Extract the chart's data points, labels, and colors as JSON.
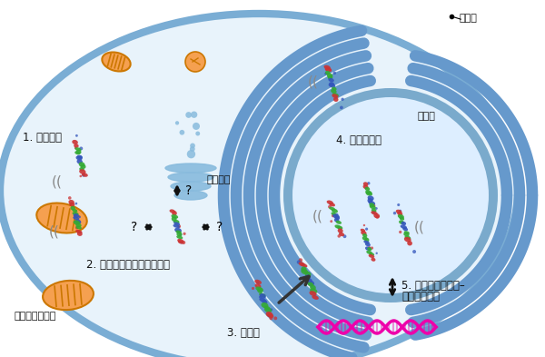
{
  "bg_color": "#ffffff",
  "cell_border_color": "#7aadd4",
  "cell_fill_color": "#e8f3fb",
  "cell_thick": 12,
  "nucleus_border_color": "#6699cc",
  "nucleus_fill_color": "#ddeeff",
  "nucleus_dark_color": "#7aaacc",
  "er_color": "#6699cc",
  "mito_fill": "#f5a050",
  "mito_stroke": "#cc7700",
  "golgi_color": "#88bbdd",
  "dna_color": "#ee00aa",
  "arrow_color": "#1a1a1a",
  "label_color": "#111111",
  "gray_color": "#888888",
  "label_fontsize": 8.5,
  "annot_fontsize": 8,
  "small_fontsize": 7.5,
  "cell_membrane_label": "細胞膜",
  "label1": "1. 高移動性",
  "label2": "2. 細胞小器官との相互作用",
  "label3": "3. 核移行",
  "label4": "4. 核への集積",
  "label5_line1": "5. 転写マシナリー–",
  "label5_line2": "との相互作用",
  "golgi_label": "ゴルジ体",
  "er_label": "小胞体",
  "mito_label": "ミトコンドリア",
  "q_mark": "?"
}
